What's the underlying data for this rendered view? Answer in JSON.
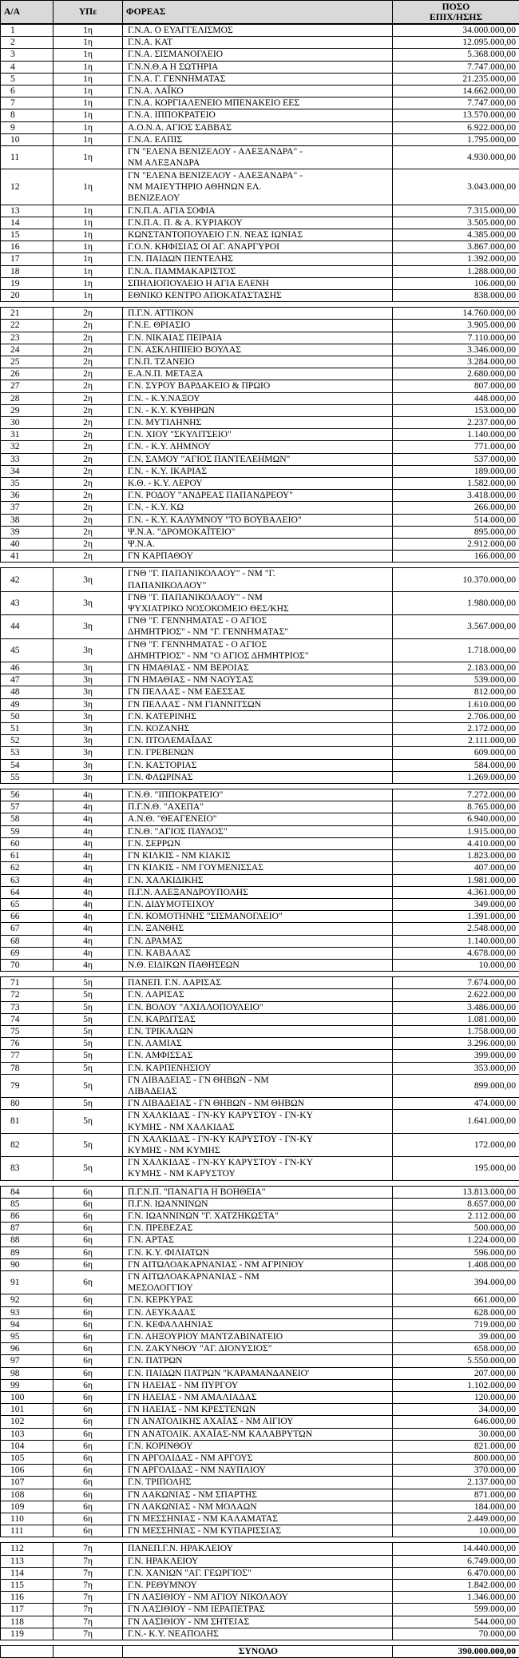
{
  "header": {
    "aa": "Α/Α",
    "ype": "ΥΠε",
    "foreas": "ΦΟΡΕΑΣ",
    "poso": "ΠΟΣΟ\nΕΠΙΧ/ΗΣΗΣ"
  },
  "groups": [
    {
      "rows": [
        [
          "1",
          "1η",
          "Γ.Ν.Α. Ο ΕΥΑΓΓΕΛΙΣΜΟΣ",
          "34.000.000,00"
        ],
        [
          "2",
          "1η",
          "Γ.Ν.Α. ΚΑΤ",
          "12.095.000,00"
        ],
        [
          "3",
          "1η",
          "Γ.Ν.Α. ΣΙΣΜΑΝΟΓΛΕΙΟ",
          "5.368.000,00"
        ],
        [
          "4",
          "1η",
          "Γ.Ν.Ν.Θ.Α Η ΣΩΤΗΡΙΑ",
          "7.747.000,00"
        ],
        [
          "5",
          "1η",
          "Γ.Ν.Α. Γ. ΓΕΝΝΗΜΑΤΑΣ",
          "21.235.000,00"
        ],
        [
          "6",
          "1η",
          "Γ.Ν.Α. ΛΑΪΚΟ",
          "14.662.000,00"
        ],
        [
          "7",
          "1η",
          "Γ.Ν.Α. ΚΟΡΓΙΑΛΕΝΕΙΟ ΜΠΕΝΑΚΕΙΟ ΕΕΣ",
          "7.747.000,00"
        ],
        [
          "8",
          "1η",
          "Γ.Ν.Α. ΙΠΠΟΚΡΑΤΕΙΟ",
          "13.570.000,00"
        ],
        [
          "9",
          "1η",
          "Α.Ο.Ν.Α. ΑΓΙΟΣ ΣΑΒΒΑΣ",
          "6.922.000,00"
        ],
        [
          "10",
          "1η",
          "Γ.Ν.Α. ΕΛΠΙΣ",
          "1.795.000,00"
        ],
        [
          "11",
          "1η",
          "ΓΝ \"ΕΛΕΝΑ ΒΕΝΙΖΕΛΟΥ - ΑΛΕΞΑΝΔΡΑ\" -\nΝΜ ΑΛΕΞΑΝΔΡΑ",
          "4.930.000,00"
        ],
        [
          "12",
          "1η",
          "ΓΝ \"ΕΛΕΝΑ ΒΕΝΙΖΕΛΟΥ - ΑΛΕΞΑΝΔΡΑ\" -\nΝΜ ΜΑΙΕΥΤΗΡΙΟ ΑΘΗΝΩΝ ΕΛ.\nΒΕΝΙΖΕΛΟΥ",
          "3.043.000,00"
        ],
        [
          "13",
          "1η",
          "Γ.Ν.Π.Α. ΑΓΙΑ ΣΟΦΙΑ",
          "7.315.000,00"
        ],
        [
          "14",
          "1η",
          "Γ.Ν.Π.Α. Π. & Α. ΚΥΡΙΑΚΟΥ",
          "3.505.000,00"
        ],
        [
          "15",
          "1η",
          "ΚΩΝΣΤΑΝΤΟΠΟΥΛΕΙΟ Γ.Ν. ΝΕΑΣ ΙΩΝΙΑΣ",
          "4.385.000,00"
        ],
        [
          "16",
          "1η",
          "Γ.Ο.Ν. ΚΗΦΙΣΙΑΣ ΟΙ ΑΓ. ΑΝΑΡΓΥΡΟΙ",
          "3.867.000,00"
        ],
        [
          "17",
          "1η",
          "Γ.Ν. ΠΑΙΔΩΝ ΠΕΝΤΕΛΗΣ",
          "1.392.000,00"
        ],
        [
          "18",
          "1η",
          "Γ.Ν.Α. ΠΑΜΜΑΚΑΡΙΣΤΟΣ",
          "1.288.000,00"
        ],
        [
          "19",
          "1η",
          "ΣΠΗΛΙΟΠΟΥΛΕΙΟ Η ΑΓΙΑ ΕΛΕΝΗ",
          "106.000,00"
        ],
        [
          "20",
          "1η",
          "ΕΘΝΙΚΟ ΚΕΝΤΡΟ ΑΠΟΚΑΤΑΣΤΑΣΗΣ",
          "838.000,00"
        ]
      ]
    },
    {
      "rows": [
        [
          "21",
          "2η",
          "Π.Γ.Ν. ΑΤΤΙΚΟΝ",
          "14.760.000,00"
        ],
        [
          "22",
          "2η",
          "Γ.Ν.Ε. ΘΡΙΑΣΙΟ",
          "3.905.000,00"
        ],
        [
          "23",
          "2η",
          "Γ.Ν. ΝΙΚΑΙΑΣ ΠΕΙΡΑΙΑ",
          "7.110.000,00"
        ],
        [
          "24",
          "2η",
          "Γ.Ν. ΑΣΚΛΗΠΙΕΙΟ ΒΟΥΛΑΣ",
          "3.346.000,00"
        ],
        [
          "25",
          "2η",
          "Γ.Ν.Π. ΤΖΑΝΕΙΟ",
          "3.284.000,00"
        ],
        [
          "26",
          "2η",
          "Ε.Α.Ν.Π. ΜΕΤΑΞΑ",
          "2.680.000,00"
        ],
        [
          "27",
          "2η",
          "Γ.Ν. ΣΥΡΟΥ ΒΑΡΔΑΚΕΙΟ & ΠΡΩΙΟ",
          "807.000,00"
        ],
        [
          "28",
          "2η",
          "Γ.Ν. - Κ.Υ.ΝΑΞΟΥ",
          "448.000,00"
        ],
        [
          "29",
          "2η",
          "Γ.Ν. - Κ.Υ. ΚΥΘΗΡΩΝ",
          "153.000,00"
        ],
        [
          "30",
          "2η",
          "Γ.Ν. ΜΥΤΙΛΗΝΗΣ",
          "2.237.000,00"
        ],
        [
          "31",
          "2η",
          "Γ.Ν. ΧΙΟΥ \"ΣΚΥΛΙΤΣΕΙΟ\"",
          "1.140.000,00"
        ],
        [
          "32",
          "2η",
          "Γ.Ν. - Κ.Υ. ΛΗΜΝΟΥ",
          "771.000,00"
        ],
        [
          "33",
          "2η",
          "Γ.Ν. ΣΑΜΟΥ \"ΑΓΙΟΣ ΠΑΝΤΕΛΕΗΜΩΝ\"",
          "537.000,00"
        ],
        [
          "34",
          "2η",
          "Γ.Ν. - Κ.Υ. ΙΚΑΡΙΑΣ",
          "189.000,00"
        ],
        [
          "35",
          "2η",
          "Κ.Θ. - Κ.Υ. ΛΕΡΟΥ",
          "1.582.000,00"
        ],
        [
          "36",
          "2η",
          "Γ.Ν. ΡΟΔΟΥ \"ΑΝΔΡΕΑΣ ΠΑΠΑΝΔΡΕΟΥ\"",
          "3.418.000,00"
        ],
        [
          "37",
          "2η",
          "Γ.Ν. - Κ.Υ. ΚΩ",
          "266.000,00"
        ],
        [
          "38",
          "2η",
          "Γ.Ν. - Κ.Υ. ΚΑΛΥΜΝΟΥ \"ΤΟ ΒΟΥΒΑΛΕΙΟ\"",
          "514.000,00"
        ],
        [
          "39",
          "2η",
          "Ψ.Ν.Α. \"ΔΡΟΜΟΚΑΪΤΕΙΟ\"",
          "895.000,00"
        ],
        [
          "40",
          "2η",
          "Ψ.Ν.Α.",
          "2.912.000,00"
        ],
        [
          "41",
          "2η",
          "ΓΝ ΚΑΡΠΑΘΟΥ",
          "166.000,00"
        ]
      ]
    },
    {
      "rows": [
        [
          "42",
          "3η",
          "ΓΝΘ \"Γ. ΠΑΠΑΝΙΚΟΛΑΟΥ\" - ΝΜ \"Γ.\nΠΑΠΑΝΙΚΟΛΑΟΥ\"",
          "10.370.000,00"
        ],
        [
          "43",
          "3η",
          "ΓΝΘ \"Γ. ΠΑΠΑΝΙΚΟΛΑΟΥ\" - ΝΜ\nΨΥΧΙΑΤΡΙΚΟ ΝΟΣΟΚΟΜΕΙΟ ΘΕΣ/ΚΗΣ",
          "1.980.000,00"
        ],
        [
          "44",
          "3η",
          "ΓΝΘ \"Γ. ΓΕΝΝΗΜΑΤΑΣ - Ο ΑΓΙΟΣ\nΔΗΜΗΤΡΙΟΣ\" - ΝΜ \"Γ. ΓΕΝΝΗΜΑΤΑΣ\"",
          "3.567.000,00"
        ],
        [
          "45",
          "3η",
          "ΓΝΘ \"Γ. ΓΕΝΝΗΜΑΤΑΣ - Ο ΑΓΙΟΣ\nΔΗΜΗΤΡΙΟΣ\" - ΝΜ \"Ο ΑΓΙΟΣ ΔΗΜΗΤΡΙΟΣ\"",
          "1.718.000,00"
        ],
        [
          "46",
          "3η",
          "ΓΝ ΗΜΑΘΙΑΣ - ΝΜ ΒΕΡΟΙΑΣ",
          "2.183.000,00"
        ],
        [
          "47",
          "3η",
          "ΓΝ ΗΜΑΘΙΑΣ - ΝΜ ΝΑΟΥΣΑΣ",
          "539.000,00"
        ],
        [
          "48",
          "3η",
          "ΓΝ ΠΕΛΛΑΣ - ΝΜ ΕΔΕΣΣΑΣ",
          "812.000,00"
        ],
        [
          "49",
          "3η",
          "ΓΝ ΠΕΛΛΑΣ - ΝΜ ΓΙΑΝΝΙΤΣΩΝ",
          "1.610.000,00"
        ],
        [
          "50",
          "3η",
          "Γ.Ν. ΚΑΤΕΡΙΝΗΣ",
          "2.706.000,00"
        ],
        [
          "51",
          "3η",
          "Γ.Ν. ΚΟΖΑΝΗΣ",
          "2.172.000,00"
        ],
        [
          "52",
          "3η",
          "Γ.Ν. ΠΤΟΛΕΜΑΪΔΑΣ",
          "2.111.000,00"
        ],
        [
          "53",
          "3η",
          "Γ.Ν. ΓΡΕΒΕΝΩΝ",
          "609.000,00"
        ],
        [
          "54",
          "3η",
          "Γ.Ν. ΚΑΣΤΟΡΙΑΣ",
          "584.000,00"
        ],
        [
          "55",
          "3η",
          "Γ.Ν. ΦΛΩΡΙΝΑΣ",
          "1.269.000,00"
        ]
      ]
    },
    {
      "rows": [
        [
          "56",
          "4η",
          "Γ.Ν.Θ. \"ΙΠΠΟΚΡΑΤΕΙΟ\"",
          "7.272.000,00"
        ],
        [
          "57",
          "4η",
          "Π.Γ.Ν.Θ. \"ΑΧΕΠΑ\"",
          "8.765.000,00"
        ],
        [
          "58",
          "4η",
          "Α.Ν.Θ. \"ΘΕΑΓΕΝΕΙΟ\"",
          "6.940.000,00"
        ],
        [
          "59",
          "4η",
          "Γ.Ν.Θ. \"ΑΓΙΟΣ ΠΑΥΛΟΣ\"",
          "1.915.000,00"
        ],
        [
          "60",
          "4η",
          "Γ.Ν. ΣΕΡΡΩΝ",
          "4.410.000,00"
        ],
        [
          "61",
          "4η",
          "ΓΝ ΚΙΛΚΙΣ - ΝΜ ΚΙΛΚΙΣ",
          "1.823.000,00"
        ],
        [
          "62",
          "4η",
          "ΓΝ ΚΙΛΚΙΣ - ΝΜ ΓΟΥΜΕΝΙΣΣΑΣ",
          "407.000,00"
        ],
        [
          "63",
          "4η",
          "Γ.Ν. ΧΑΛΚΙΔΙΚΗΣ",
          "1.981.000,00"
        ],
        [
          "64",
          "4η",
          "Π.Γ.Ν. ΑΛΕΞΑΝΔΡΟΥΠΟΛΗΣ",
          "4.361.000,00"
        ],
        [
          "65",
          "4η",
          "Γ.Ν. ΔΙΔΥΜΟΤΕΙΧΟΥ",
          "349.000,00"
        ],
        [
          "66",
          "4η",
          "Γ.Ν. ΚΟΜΟΤΗΝΗΣ \"ΣΙΣΜΑΝΟΓΛΕΙΟ\"",
          "1.391.000,00"
        ],
        [
          "67",
          "4η",
          "Γ.Ν. ΞΑΝΘΗΣ",
          "2.548.000,00"
        ],
        [
          "68",
          "4η",
          "Γ.Ν. ΔΡΑΜΑΣ",
          "1.140.000,00"
        ],
        [
          "69",
          "4η",
          "Γ.Ν. ΚΑΒΑΛΑΣ",
          "4.678.000,00"
        ],
        [
          "70",
          "4η",
          "Ν.Θ. ΕΙΔΙΚΩΝ ΠΑΘΗΣΕΩΝ",
          "10.000,00"
        ]
      ]
    },
    {
      "rows": [
        [
          "71",
          "5η",
          "ΠΑΝΕΠ. Γ.Ν. ΛΑΡΙΣΑΣ",
          "7.674.000,00"
        ],
        [
          "72",
          "5η",
          "Γ.Ν. ΛΑΡΙΣΑΣ",
          "2.622.000,00"
        ],
        [
          "73",
          "5η",
          "Γ.Ν. ΒΟΛΟΥ \"ΑΧΙΛΛΟΠΟΥΛΕΙΟ\"",
          "3.486.000,00"
        ],
        [
          "74",
          "5η",
          "Γ.Ν. ΚΑΡΔΙΤΣΑΣ",
          "1.081.000,00"
        ],
        [
          "75",
          "5η",
          "Γ.Ν. ΤΡΙΚΑΛΩΝ",
          "1.758.000,00"
        ],
        [
          "76",
          "5η",
          "Γ.Ν. ΛΑΜΙΑΣ",
          "3.296.000,00"
        ],
        [
          "77",
          "5η",
          "Γ.Ν. ΑΜΦΙΣΣΑΣ",
          "399.000,00"
        ],
        [
          "78",
          "5η",
          "Γ.Ν. ΚΑΡΠΕΝΗΣΙΟΥ",
          "353.000,00"
        ],
        [
          "79",
          "5η",
          "ΓΝ ΛΙΒΑΔΕΙΑΣ - ΓΝ ΘΗΒΩΝ - ΝΜ\nΛΙΒΑΔΕΙΑΣ",
          "899.000,00"
        ],
        [
          "80",
          "5η",
          "ΓΝ ΛΙΒΑΔΕΙΑΣ - ΓΝ ΘΗΒΩΝ - ΝΜ ΘΗΒΩΝ",
          "474.000,00"
        ],
        [
          "81",
          "5η",
          "ΓΝ ΧΑΛΚΙΔΑΣ - ΓΝ-ΚΥ ΚΑΡΥΣΤΟΥ - ΓΝ-ΚΥ\nΚΥΜΗΣ - ΝΜ ΧΑΛΚΙΔΑΣ",
          "1.641.000,00"
        ],
        [
          "82",
          "5η",
          "ΓΝ ΧΑΛΚΙΔΑΣ - ΓΝ-ΚΥ ΚΑΡΥΣΤΟΥ - ΓΝ-ΚΥ\nΚΥΜΗΣ - ΝΜ ΚΥΜΗΣ",
          "172.000,00"
        ],
        [
          "83",
          "5η",
          "ΓΝ ΧΑΛΚΙΔΑΣ - ΓΝ-ΚΥ ΚΑΡΥΣΤΟΥ - ΓΝ-ΚΥ\nΚΥΜΗΣ - ΝΜ ΚΑΡΥΣΤΟΥ",
          "195.000,00"
        ]
      ]
    },
    {
      "rows": [
        [
          "84",
          "6η",
          "Π.Γ.Ν.Π. \"ΠΑΝΑΓΙΑ Η ΒΟΗΘΕΙΑ\"",
          "13.813.000,00"
        ],
        [
          "85",
          "6η",
          "Π.Γ.Ν. ΙΩΑΝΝΙΝΩΝ",
          "8.657.000,00"
        ],
        [
          "86",
          "6η",
          "Γ.Ν. ΙΩΑΝΝΙΝΩΝ \"Γ. ΧΑΤΖΗΚΩΣΤΑ\"",
          "2.112.000,00"
        ],
        [
          "87",
          "6η",
          "Γ.Ν. ΠΡΕΒΕΖΑΣ",
          "500.000,00"
        ],
        [
          "88",
          "6η",
          "Γ.Ν. ΑΡΤΑΣ",
          "1.224.000,00"
        ],
        [
          "89",
          "6η",
          "Γ.Ν. Κ.Υ. ΦΙΛΙΑΤΩΝ",
          "596.000,00"
        ],
        [
          "90",
          "6η",
          "ΓΝ ΑΙΤΩΛΟΑΚΑΡΝΑΝΙΑΣ - ΝΜ ΑΓΡΙΝΙΟΥ",
          "1.408.000,00"
        ],
        [
          "91",
          "6η",
          "ΓΝ ΑΙΤΩΛΟΑΚΑΡΝΑΝΙΑΣ - ΝΜ\nΜΕΣΟΛΟΓΓΙΟΥ",
          "394.000,00"
        ],
        [
          "92",
          "6η",
          "Γ.Ν. ΚΕΡΚΥΡΑΣ",
          "661.000,00"
        ],
        [
          "93",
          "6η",
          "Γ.Ν. ΛΕΥΚΑΔΑΣ",
          "628.000,00"
        ],
        [
          "94",
          "6η",
          "Γ.Ν. ΚΕΦΑΛΛΗΝΙΑΣ",
          "719.000,00"
        ],
        [
          "95",
          "6η",
          "Γ.Ν. ΛΗΞΟΥΡΙΟΥ ΜΑΝΤΖΑΒΙΝΑΤΕΙΟ",
          "39.000,00"
        ],
        [
          "96",
          "6η",
          "Γ.Ν. ΖΑΚΥΝΘΟΥ \"ΑΓ. ΔΙΟΝΥΣΙΟΣ\"",
          "658.000,00"
        ],
        [
          "97",
          "6η",
          "Γ.Ν. ΠΑΤΡΩΝ",
          "5.550.000,00"
        ],
        [
          "98",
          "6η",
          "Γ.Ν. ΠΑΙΔΩΝ ΠΑΤΡΩΝ \"ΚΑΡΑΜΑΝΔΑΝΕΙΟ'",
          "207.000,00"
        ],
        [
          "99",
          "6η",
          "ΓΝ ΗΛΕΙΑΣ - ΝΜ ΠΥΡΓΟΥ",
          "1.102.000,00"
        ],
        [
          "100",
          "6η",
          "ΓΝ ΗΛΕΙΑΣ - ΝΜ ΑΜΑΛΙΑΔΑΣ",
          "120.000,00"
        ],
        [
          "101",
          "6η",
          "ΓΝ ΗΛΕΙΑΣ - ΝΜ ΚΡΕΣΤΕΝΩΝ",
          "34.000,00"
        ],
        [
          "102",
          "6η",
          "ΓΝ ΑΝΑΤΟΛΙΚΗΣ ΑΧΑΪΑΣ - ΝΜ ΑΙΓΙΟΥ",
          "646.000,00"
        ],
        [
          "103",
          "6η",
          "ΓΝ ΑΝΑΤΟΛΙΚ. ΑΧΑΪΑΣ-ΝΜ ΚΑΛΑΒΡΥΤΩΝ",
          "30.000,00"
        ],
        [
          "104",
          "6η",
          "Γ.Ν. ΚΟΡΙΝΘΟΥ",
          "821.000,00"
        ],
        [
          "105",
          "6η",
          "ΓΝ ΑΡΓΟΛΙΔΑΣ - ΝΜ ΑΡΓΟΥΣ",
          "800.000,00"
        ],
        [
          "106",
          "6η",
          "ΓΝ ΑΡΓΟΛΙΔΑΣ - ΝΜ ΝΑΥΠΛΙΟΥ",
          "370.000,00"
        ],
        [
          "107",
          "6η",
          "Γ.Ν. ΤΡΙΠΟΛΗΣ",
          "2.137.000,00"
        ],
        [
          "108",
          "6η",
          "ΓΝ ΛΑΚΩΝΙΑΣ - ΝΜ ΣΠΑΡΤΗΣ",
          "871.000,00"
        ],
        [
          "109",
          "6η",
          "ΓΝ ΛΑΚΩΝΙΑΣ - ΝΜ ΜΟΛΑΩΝ",
          "184.000,00"
        ],
        [
          "110",
          "6η",
          "ΓΝ ΜΕΣΣΗΝΙΑΣ - ΝΜ ΚΑΛΑΜΑΤΑΣ",
          "2.449.000,00"
        ],
        [
          "111",
          "6η",
          "ΓΝ ΜΕΣΣΗΝΙΑΣ - ΝΜ ΚΥΠΑΡΙΣΣΙΑΣ",
          "10.000,00"
        ]
      ]
    },
    {
      "rows": [
        [
          "112",
          "7η",
          "ΠΑΝΕΠ.Γ.Ν. ΗΡΑΚΛΕΙΟΥ",
          "14.440.000,00"
        ],
        [
          "113",
          "7η",
          "Γ.Ν. ΗΡΑΚΛΕΙΟΥ",
          "6.749.000,00"
        ],
        [
          "114",
          "7η",
          "Γ.Ν. ΧΑΝΙΩΝ \"ΑΓ. ΓΕΩΡΓΙΟΣ\"",
          "6.470.000,00"
        ],
        [
          "115",
          "7η",
          "Γ.Ν. ΡΕΘΥΜΝΟΥ",
          "1.842.000,00"
        ],
        [
          "116",
          "7η",
          "ΓΝ ΛΑΣΙΘΙΟΥ - ΝΜ ΑΓΙΟΥ ΝΙΚΟΛΑΟΥ",
          "1.346.000,00"
        ],
        [
          "117",
          "7η",
          "ΓΝ ΛΑΣΙΘΙΟΥ - ΝΜ ΙΕΡΑΠΕΤΡΑΣ",
          "599.000,00"
        ],
        [
          "118",
          "7η",
          "ΓΝ ΛΑΣΙΘΙΟΥ - ΝΜ ΣΗΤΕΙΑΣ",
          "544.000,00"
        ],
        [
          "119",
          "7η",
          "Γ.Ν.- Κ.Υ. ΝΕΑΠΟΛΗΣ",
          "70.000,00"
        ]
      ]
    }
  ],
  "total": {
    "label": "ΣΥΝΟΛΟ",
    "amount": "390.000.000,00"
  }
}
